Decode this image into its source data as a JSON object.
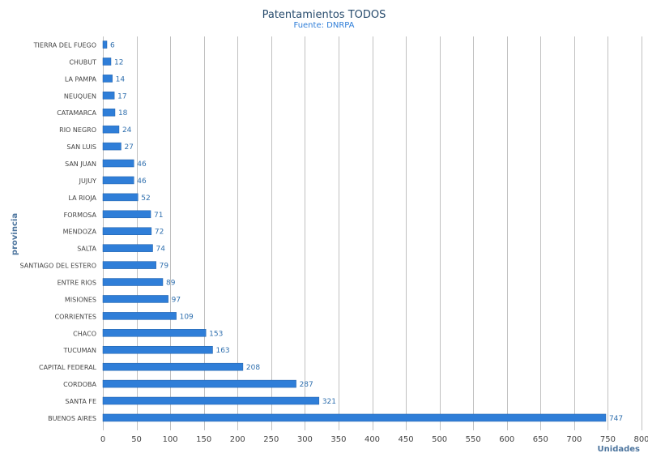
{
  "chart_data": {
    "type": "bar",
    "orientation": "horizontal",
    "title": "Patentamientos TODOS",
    "subtitle": "Fuente: DNRPA",
    "xlabel": "Unidades",
    "ylabel": "provincia",
    "xlim": [
      0,
      800
    ],
    "xticks": [
      0,
      50,
      100,
      150,
      200,
      250,
      300,
      350,
      400,
      450,
      500,
      550,
      600,
      650,
      700,
      750,
      800
    ],
    "grid": true,
    "legend": "none",
    "categories": [
      "TIERRA DEL FUEGO",
      "CHUBUT",
      "LA PAMPA",
      "NEUQUEN",
      "CATAMARCA",
      "RIO NEGRO",
      "SAN LUIS",
      "SAN JUAN",
      "JUJUY",
      "LA RIOJA",
      "FORMOSA",
      "MENDOZA",
      "SALTA",
      "SANTIAGO DEL ESTERO",
      "ENTRE RIOS",
      "MISIONES",
      "CORRIENTES",
      "CHACO",
      "TUCUMAN",
      "CAPITAL FEDERAL",
      "CORDOBA",
      "SANTA FE",
      "BUENOS AIRES"
    ],
    "values": [
      6,
      12,
      14,
      17,
      18,
      24,
      27,
      46,
      46,
      52,
      71,
      72,
      74,
      79,
      89,
      97,
      109,
      153,
      163,
      208,
      287,
      321,
      747
    ],
    "colors": {
      "bar": "#2F7ED8",
      "bar_edge": "#1F5FA8",
      "title": "#274b6d",
      "subtitle": "#2F7ED8",
      "axis_title": "#4d759e",
      "data_label": "#2F6FAE",
      "tick_label": "#444444",
      "grid": "#C0C0C0"
    }
  }
}
